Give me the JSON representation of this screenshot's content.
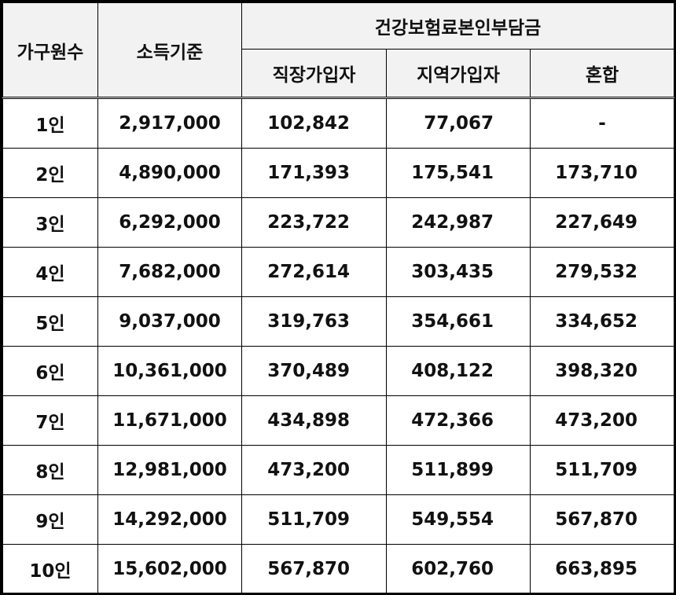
{
  "header": {
    "household": "가구원수",
    "income": "소득기준",
    "premium_group": "건강보험료본인부담금",
    "employee": "직장가입자",
    "regional": "지역가입자",
    "mixed": "혼합"
  },
  "rows": [
    {
      "size": "1인",
      "income": "2,917,000",
      "employee": "102,842",
      "regional": "77,067",
      "mixed": "-"
    },
    {
      "size": "2인",
      "income": "4,890,000",
      "employee": "171,393",
      "regional": "175,541",
      "mixed": "173,710"
    },
    {
      "size": "3인",
      "income": "6,292,000",
      "employee": "223,722",
      "regional": "242,987",
      "mixed": "227,649"
    },
    {
      "size": "4인",
      "income": "7,682,000",
      "employee": "272,614",
      "regional": "303,435",
      "mixed": "279,532"
    },
    {
      "size": "5인",
      "income": "9,037,000",
      "employee": "319,763",
      "regional": "354,661",
      "mixed": "334,652"
    },
    {
      "size": "6인",
      "income": "10,361,000",
      "employee": "370,489",
      "regional": "408,122",
      "mixed": "398,320"
    },
    {
      "size": "7인",
      "income": "11,671,000",
      "employee": "434,898",
      "regional": "472,366",
      "mixed": "473,200"
    },
    {
      "size": "8인",
      "income": "12,981,000",
      "employee": "473,200",
      "regional": "511,899",
      "mixed": "511,709"
    },
    {
      "size": "9인",
      "income": "14,292,000",
      "employee": "511,709",
      "regional": "549,554",
      "mixed": "567,870"
    },
    {
      "size": "10인",
      "income": "15,602,000",
      "employee": "567,870",
      "regional": "602,760",
      "mixed": "663,895"
    }
  ]
}
